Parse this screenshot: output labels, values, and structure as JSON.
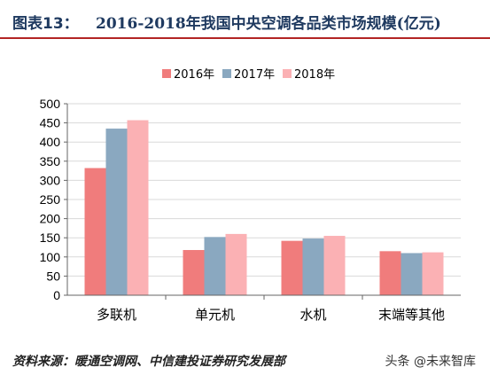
{
  "header": {
    "figure_label": "图表13：",
    "title": "2016-2018年我国中央空调各品类市场规模(亿元)"
  },
  "chart_data": {
    "type": "bar",
    "title": "2016-2018年我国中央空调各品类市场规模(亿元)",
    "categories": [
      "多联机",
      "单元机",
      "水机",
      "末端等其他"
    ],
    "series": [
      {
        "name": "2016年",
        "values": [
          332,
          118,
          142,
          115
        ],
        "color": "#f07c7c"
      },
      {
        "name": "2017年",
        "values": [
          435,
          152,
          148,
          110
        ],
        "color": "#8aa8c0"
      },
      {
        "name": "2018年",
        "values": [
          457,
          160,
          155,
          112
        ],
        "color": "#fbb1b4"
      }
    ],
    "ylim": [
      0,
      500
    ],
    "yticks": [
      "0",
      "50",
      "100",
      "150",
      "200",
      "250",
      "300",
      "350",
      "400",
      "450",
      "500"
    ],
    "grid": true,
    "legend_position": "top-center"
  },
  "footer": {
    "source": "资料来源：暖通空调网、中信建投证券研究发展部",
    "watermark": "头条 @未来智库"
  }
}
